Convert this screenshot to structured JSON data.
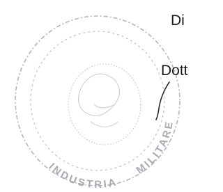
{
  "document": {
    "lines": [
      "Di",
      "Dott"
    ],
    "stamp": {
      "top_text": "MILITARE",
      "bottom_text": "INDUSTRIA"
    }
  }
}
